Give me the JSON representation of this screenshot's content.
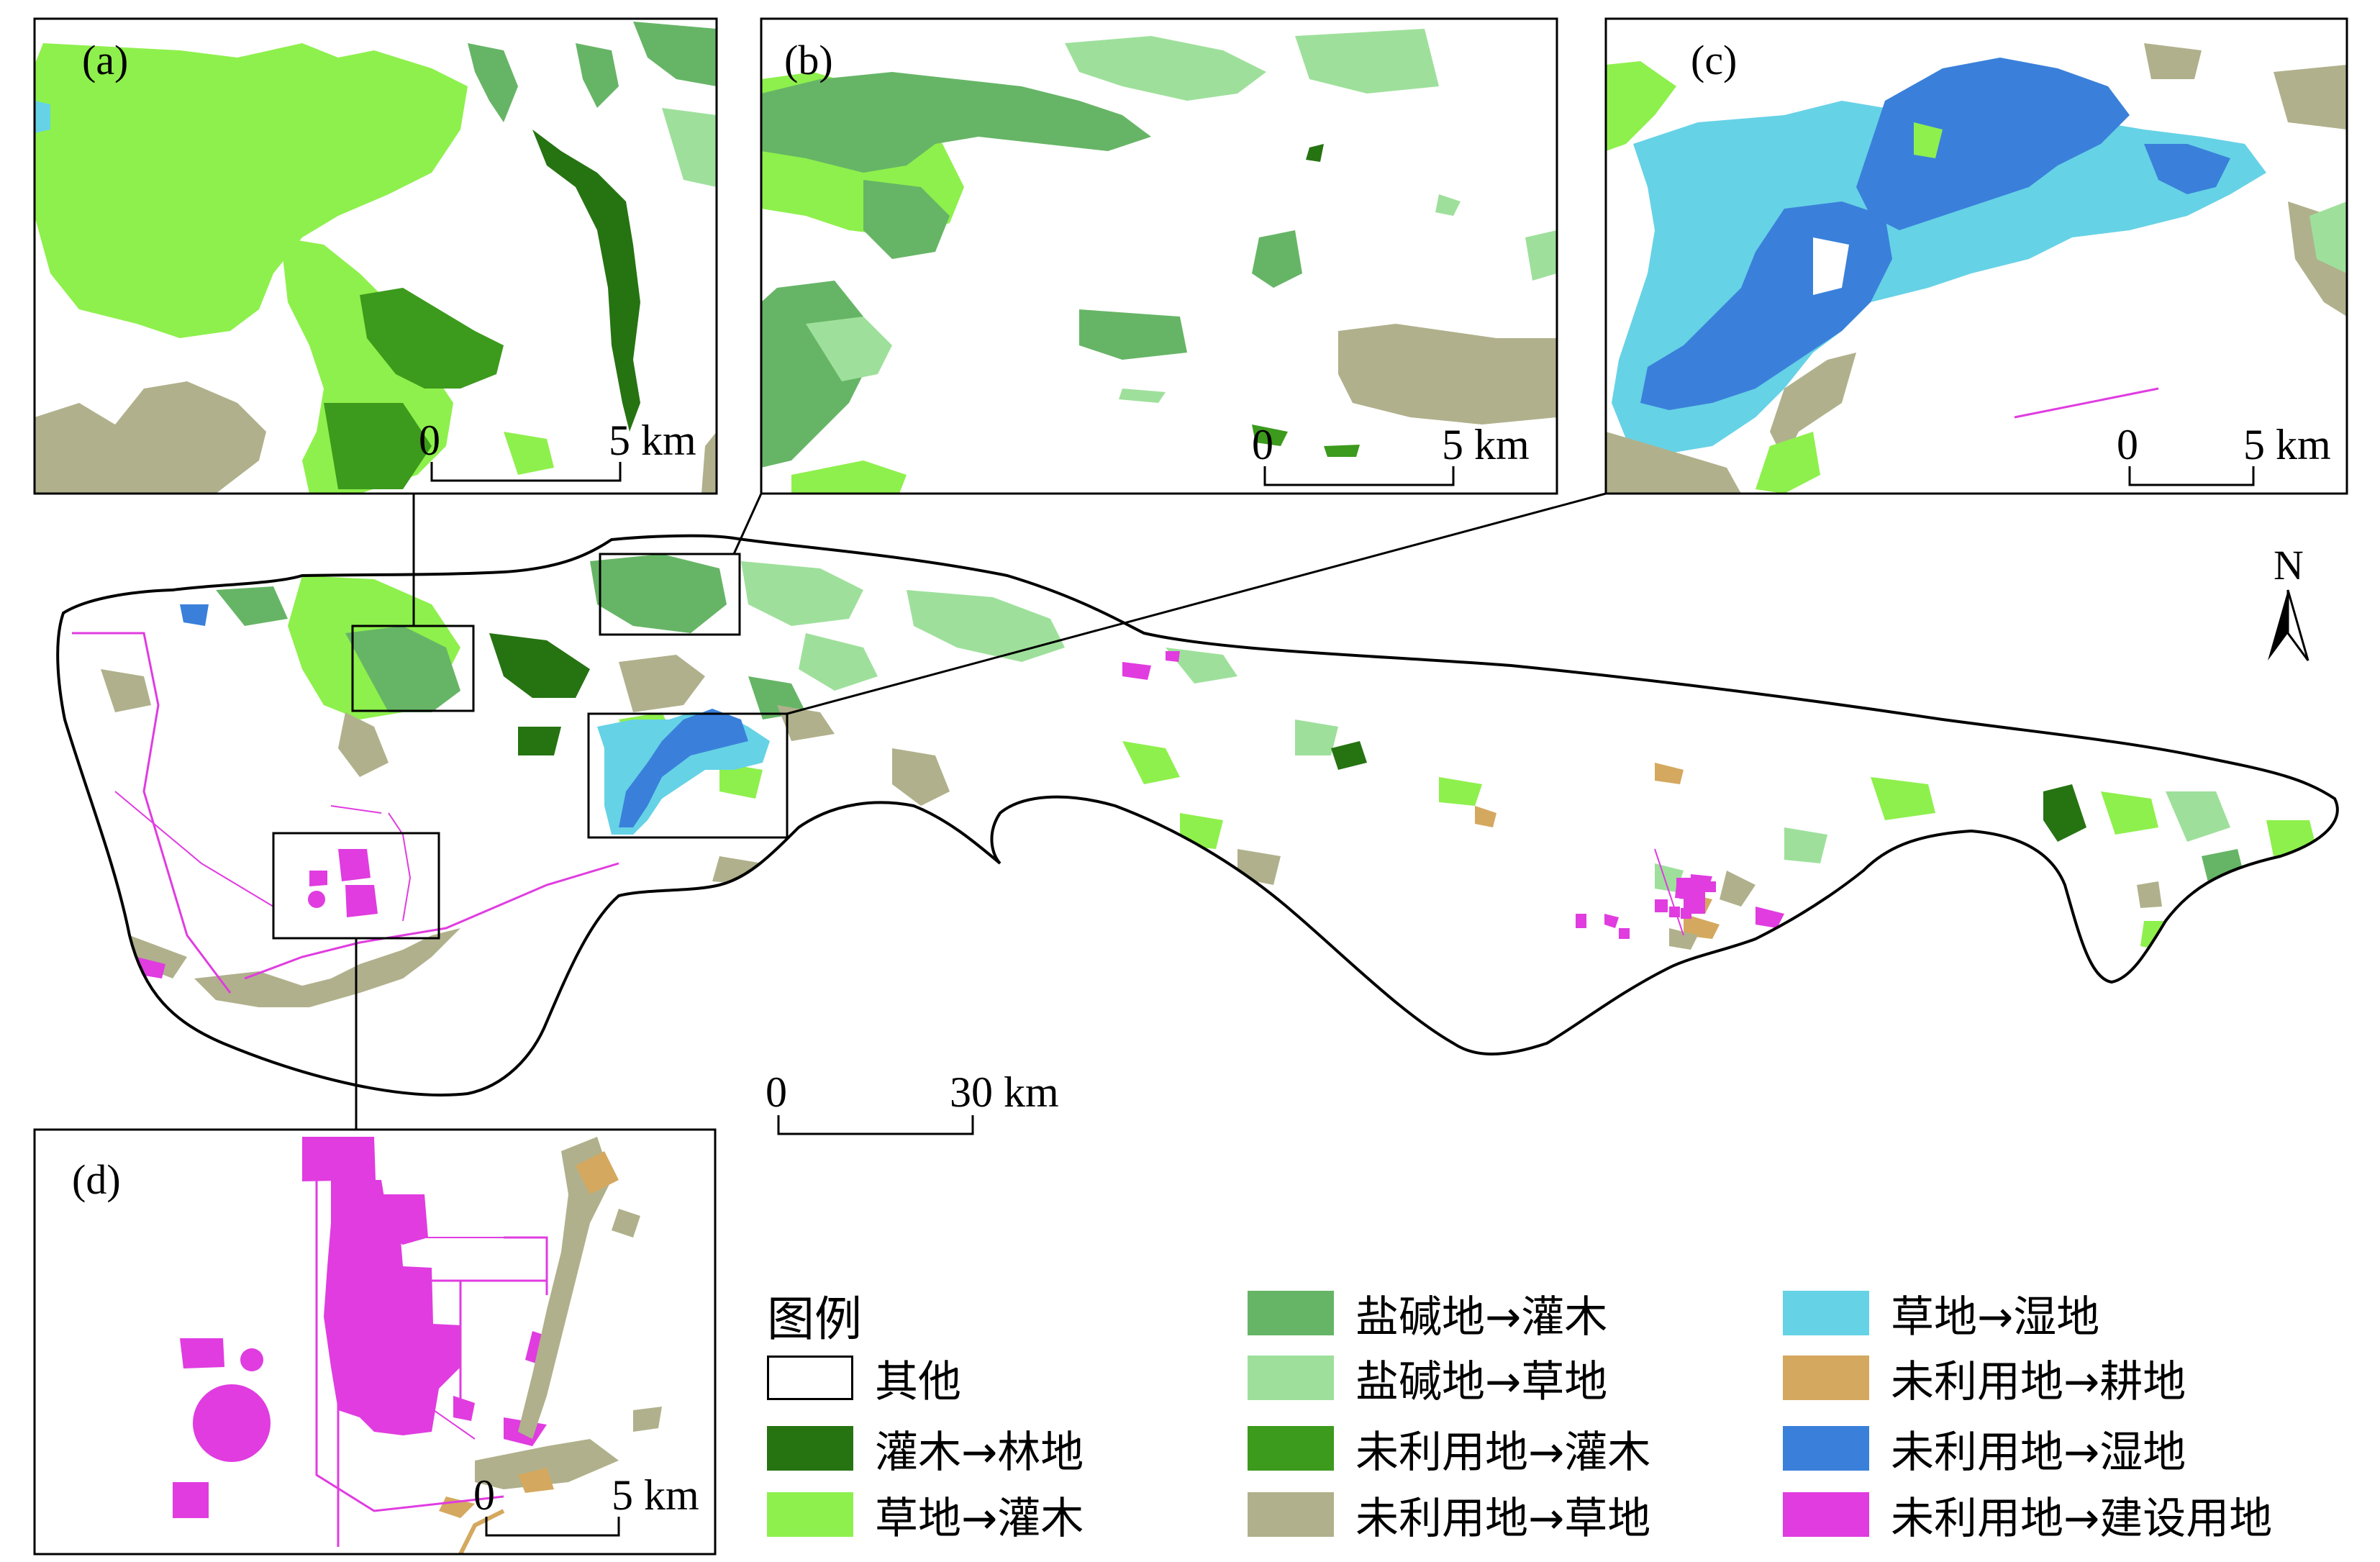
{
  "panels": [
    {
      "id": "a",
      "label": "(a)",
      "scale": {
        "zero": "0",
        "end": "5 km"
      }
    },
    {
      "id": "b",
      "label": "(b)",
      "scale": {
        "zero": "0",
        "end": "5 km"
      }
    },
    {
      "id": "c",
      "label": "(c)",
      "scale": {
        "zero": "0",
        "end": "5 km"
      }
    },
    {
      "id": "d",
      "label": "(d)",
      "scale": {
        "zero": "0",
        "end": "5 km"
      }
    }
  ],
  "main_scale": {
    "zero": "0",
    "end": "30 km"
  },
  "north_label": "N",
  "legend": {
    "title": "图例",
    "items": [
      {
        "label": "其他",
        "color": "#ffffff"
      },
      {
        "label": "灌木→林地",
        "color": "#267312"
      },
      {
        "label": "草地→灌木",
        "color": "#8ef04c"
      },
      {
        "label": "盐碱地→灌木",
        "color": "#66b566"
      },
      {
        "label": "盐碱地→草地",
        "color": "#9ee09b"
      },
      {
        "label": "未利用地→灌木",
        "color": "#3c9a1c"
      },
      {
        "label": "未利用地→草地",
        "color": "#b0b18c"
      },
      {
        "label": "草地→湿地",
        "color": "#66d2e6"
      },
      {
        "label": "未利用地→耕地",
        "color": "#d4a85f"
      },
      {
        "label": "未利用地→湿地",
        "color": "#3a80da"
      },
      {
        "label": "未利用地→建设用地",
        "color": "#e03ce0"
      }
    ]
  }
}
